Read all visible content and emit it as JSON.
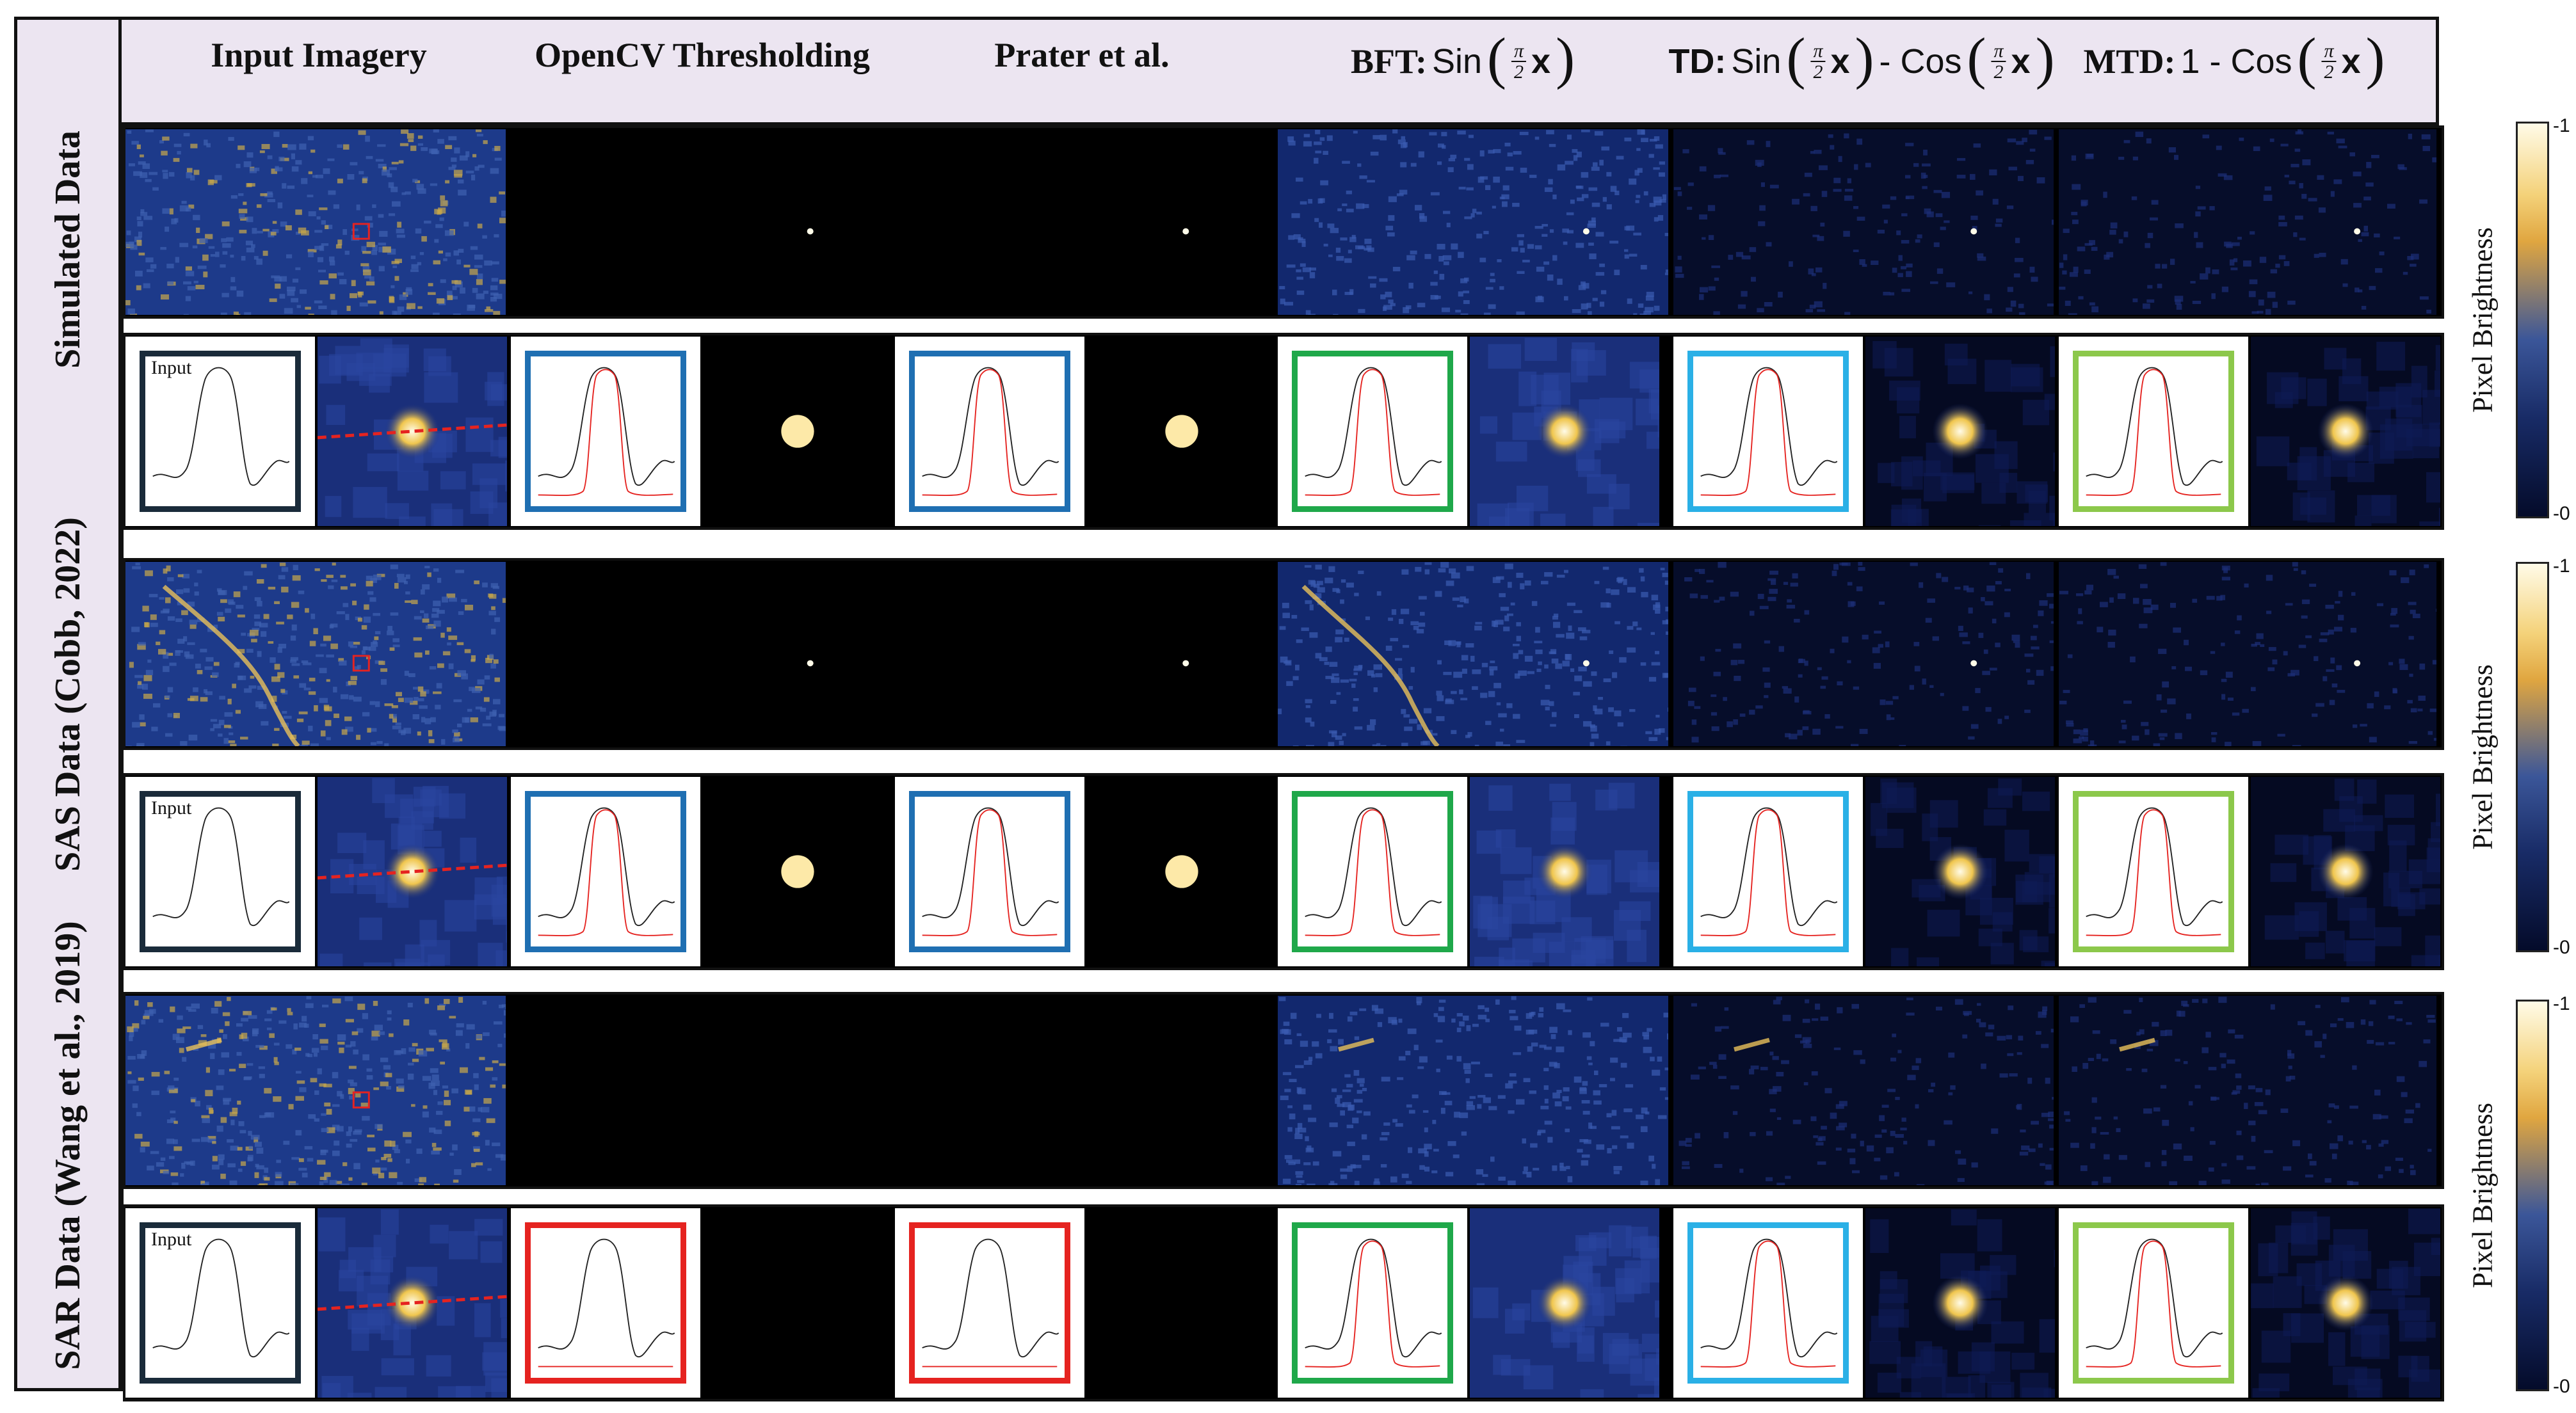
{
  "row_labels": [
    "Simulated Data",
    "SAS Data (Cobb, 2022)",
    "SAR Data (Wang et al., 2019)"
  ],
  "columns": [
    {
      "bold": "Input Imagery",
      "formula": ""
    },
    {
      "bold": "OpenCV Thresholding",
      "formula": ""
    },
    {
      "bold": "Prater et al.",
      "formula": ""
    },
    {
      "bold": "BFT:",
      "formula": "Sin"
    },
    {
      "bold": "TD:",
      "formula_a": "Sin",
      "formula_mid": "- Cos"
    },
    {
      "bold": "MTD:",
      "formula": "1 - Cos"
    }
  ],
  "fraction": {
    "num": "π",
    "den": "2",
    "var": "x"
  },
  "profile_label": "Input",
  "colorbar": {
    "label": "Pixel Brightness",
    "max": "-1",
    "min": "-0"
  },
  "colors": {
    "input_box": "#1a2b3a",
    "opencv_box": "#1f6fb2",
    "prater_box": "#1f6fb2",
    "bft_box": "#1fa84a",
    "td_box": "#2ab0e6",
    "mtd_box": "#8cc84b",
    "fail_box": "#e52320",
    "profile_black": "#222222",
    "profile_red": "#e52320"
  }
}
